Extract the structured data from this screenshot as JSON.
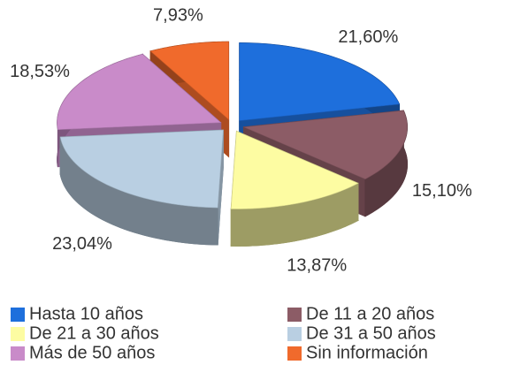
{
  "chart_data": {
    "type": "pie3d",
    "categories": [
      "Hasta 10 años",
      "De 11 a 20 años",
      "De 21 a 30 años",
      "De 31 a 50 años",
      "Más de 50 años",
      "Sin información"
    ],
    "values": [
      21.6,
      15.1,
      13.87,
      23.04,
      18.53,
      7.93
    ],
    "value_labels": [
      "21,60%",
      "15,10%",
      "13,87%",
      "23,04%",
      "18,53%",
      "7,93%"
    ],
    "colors": [
      "#1e6fdc",
      "#8c5c66",
      "#fdfca2",
      "#b9cfe2",
      "#c98bc9",
      "#f06a2c"
    ],
    "legend": "bottom"
  }
}
